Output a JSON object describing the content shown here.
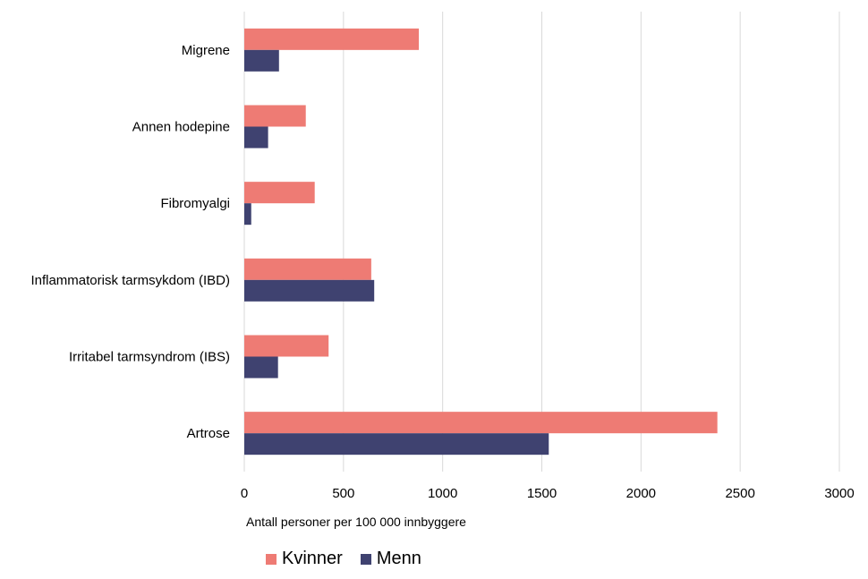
{
  "colors": {
    "kvinner": "#EE7B74",
    "menn": "#3F4270",
    "grid": "#D9D9D9"
  },
  "chart_data": {
    "type": "bar",
    "orientation": "horizontal",
    "categories": [
      "Migrene",
      "Annen hodepine",
      "Fibromyalgi",
      "Inflammatorisk tarmsykdom (IBD)",
      "Irritabel tarmsyndrom (IBS)",
      "Artrose"
    ],
    "series": [
      {
        "name": "Kvinner",
        "values": [
          880,
          310,
          355,
          640,
          425,
          2385
        ]
      },
      {
        "name": "Menn",
        "values": [
          175,
          120,
          35,
          655,
          170,
          1535
        ]
      }
    ],
    "xlabel": "Antall personer per  100 000 innbyggere",
    "xlim": [
      0,
      3000
    ],
    "xticks": [
      "0",
      "500",
      "1000",
      "1500",
      "2000",
      "2500",
      "3000"
    ],
    "grid": "vertical",
    "legend_position": "bottom-left"
  }
}
